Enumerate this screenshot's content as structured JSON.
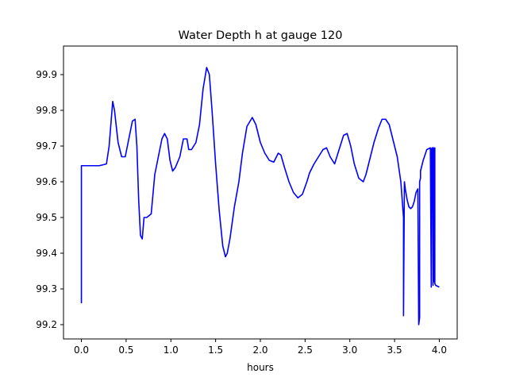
{
  "chart_data": {
    "type": "line",
    "title": "Water Depth h at gauge 120",
    "xlabel": "hours",
    "ylabel": "",
    "xlim": [
      -0.2,
      4.2
    ],
    "ylim": [
      99.16,
      99.98
    ],
    "xticks": [
      "0.0",
      "0.5",
      "1.0",
      "1.5",
      "2.0",
      "2.5",
      "3.0",
      "3.5",
      "4.0"
    ],
    "yticks": [
      "99.2",
      "99.3",
      "99.4",
      "99.5",
      "99.6",
      "99.7",
      "99.8",
      "99.9"
    ],
    "grid": false,
    "series": [
      {
        "color": "#0000ff",
        "x": [
          0.0,
          0.0,
          0.1,
          0.2,
          0.28,
          0.31,
          0.35,
          0.37,
          0.41,
          0.45,
          0.49,
          0.53,
          0.57,
          0.6,
          0.62,
          0.64,
          0.66,
          0.68,
          0.7,
          0.73,
          0.78,
          0.82,
          0.86,
          0.9,
          0.93,
          0.96,
          0.99,
          1.02,
          1.05,
          1.1,
          1.14,
          1.18,
          1.2,
          1.23,
          1.28,
          1.32,
          1.36,
          1.4,
          1.43,
          1.46,
          1.5,
          1.54,
          1.58,
          1.61,
          1.63,
          1.66,
          1.71,
          1.76,
          1.8,
          1.85,
          1.91,
          1.95,
          2.0,
          2.05,
          2.1,
          2.15,
          2.2,
          2.23,
          2.27,
          2.32,
          2.37,
          2.42,
          2.47,
          2.52,
          2.55,
          2.6,
          2.65,
          2.7,
          2.74,
          2.78,
          2.83,
          2.88,
          2.93,
          2.97,
          3.01,
          3.05,
          3.1,
          3.15,
          3.18,
          3.22,
          3.27,
          3.32,
          3.36,
          3.4,
          3.44,
          3.48,
          3.53,
          3.57,
          3.6,
          3.6,
          3.61,
          3.62,
          3.64,
          3.66,
          3.68,
          3.7,
          3.72,
          3.74,
          3.76,
          3.77,
          3.77,
          3.78,
          3.78,
          3.79,
          3.79,
          3.82,
          3.86,
          3.9,
          3.91,
          3.91,
          3.92,
          3.93,
          3.93,
          3.94,
          3.94,
          3.95,
          3.95,
          3.96,
          4.0
        ],
        "y": [
          99.26,
          99.645,
          99.645,
          99.645,
          99.65,
          99.7,
          99.825,
          99.8,
          99.71,
          99.67,
          99.67,
          99.72,
          99.77,
          99.775,
          99.7,
          99.55,
          99.45,
          99.44,
          99.5,
          99.5,
          99.51,
          99.62,
          99.67,
          99.72,
          99.735,
          99.72,
          99.66,
          99.63,
          99.64,
          99.67,
          99.72,
          99.72,
          99.69,
          99.69,
          99.71,
          99.76,
          99.86,
          99.92,
          99.9,
          99.8,
          99.65,
          99.52,
          99.42,
          99.39,
          99.4,
          99.44,
          99.53,
          99.6,
          99.68,
          99.755,
          99.78,
          99.76,
          99.71,
          99.68,
          99.66,
          99.655,
          99.68,
          99.675,
          99.64,
          99.6,
          99.57,
          99.555,
          99.565,
          99.6,
          99.625,
          99.65,
          99.67,
          99.69,
          99.695,
          99.67,
          99.65,
          99.69,
          99.73,
          99.735,
          99.7,
          99.65,
          99.61,
          99.6,
          99.62,
          99.66,
          99.71,
          99.75,
          99.775,
          99.775,
          99.76,
          99.72,
          99.67,
          99.6,
          99.5,
          99.225,
          99.6,
          99.58,
          99.55,
          99.53,
          99.525,
          99.53,
          99.545,
          99.57,
          99.58,
          99.2,
          99.2,
          99.22,
          99.6,
          99.61,
          99.63,
          99.66,
          99.69,
          99.695,
          99.305,
          99.69,
          99.695,
          99.31,
          99.695,
          99.695,
          99.32,
          99.695,
          99.315,
          99.31,
          99.305
        ]
      }
    ]
  }
}
